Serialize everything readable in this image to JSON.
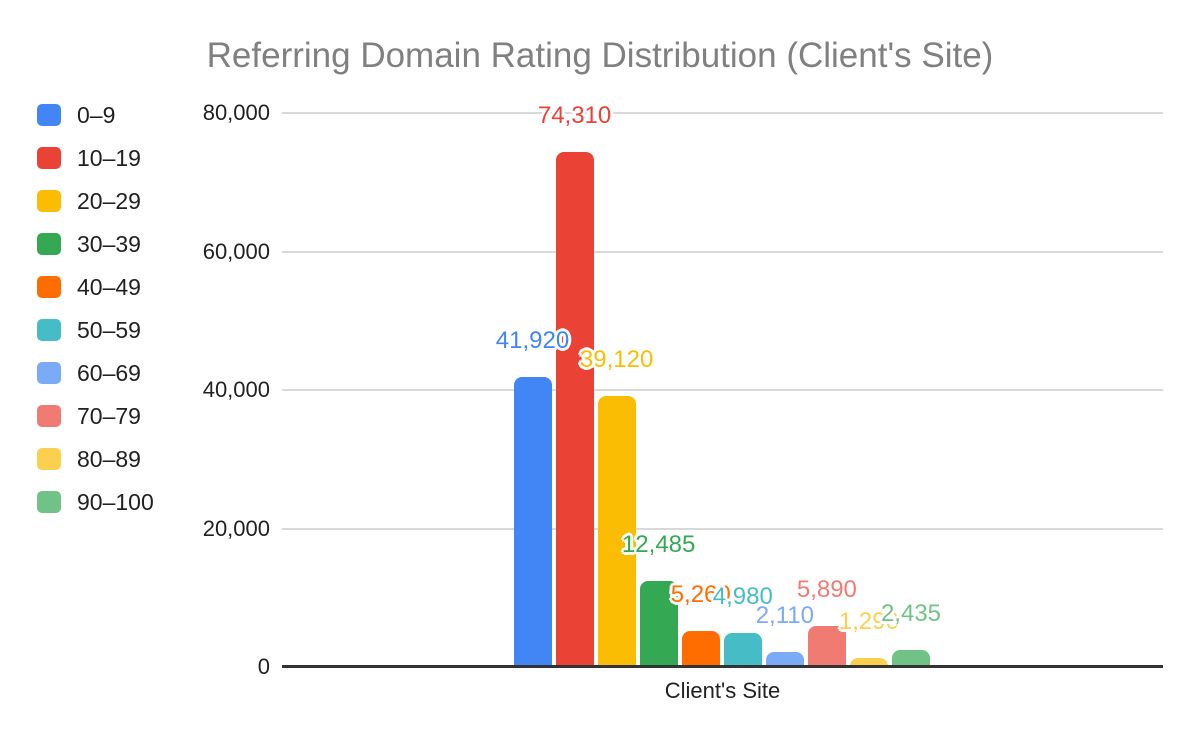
{
  "chart_data": {
    "type": "bar",
    "title": "Referring Domain Rating Distribution (Client's Site)",
    "categories": [
      "Client's Site"
    ],
    "xlabel": "Client's Site",
    "ylabel": "",
    "ylim": [
      0,
      80000
    ],
    "grid": true,
    "legend_position": "left",
    "yticks": [
      {
        "value": 0,
        "label": "0"
      },
      {
        "value": 20000,
        "label": "20,000"
      },
      {
        "value": 40000,
        "label": "40,000"
      },
      {
        "value": 60000,
        "label": "60,000"
      },
      {
        "value": 80000,
        "label": "80,000"
      }
    ],
    "series": [
      {
        "name": "0–9",
        "value": 41920,
        "label": "41,920",
        "color": "#4285F4"
      },
      {
        "name": "10–19",
        "value": 74310,
        "label": "74,310",
        "color": "#EA4335"
      },
      {
        "name": "20–29",
        "value": 39120,
        "label": "39,120",
        "color": "#FBBC04"
      },
      {
        "name": "30–39",
        "value": 12485,
        "label": "12,485",
        "color": "#34A853"
      },
      {
        "name": "40–49",
        "value": 5260,
        "label": "5,260",
        "color": "#FF6D01"
      },
      {
        "name": "50–59",
        "value": 4980,
        "label": "4,980",
        "color": "#46BDC6"
      },
      {
        "name": "60–69",
        "value": 2110,
        "label": "2,110",
        "color": "#7BAAF7"
      },
      {
        "name": "70–79",
        "value": 5890,
        "label": "5,890",
        "color": "#F07B72"
      },
      {
        "name": "80–89",
        "value": 1290,
        "label": "1,290",
        "color": "#FCD04F"
      },
      {
        "name": "90–100",
        "value": 2435,
        "label": "2,435",
        "color": "#71C287"
      }
    ]
  },
  "colors": {
    "title_text": "#808080",
    "axis_text": "#212121",
    "gridline": "#d9d9d9",
    "baseline": "#333333",
    "background": "#ffffff"
  }
}
